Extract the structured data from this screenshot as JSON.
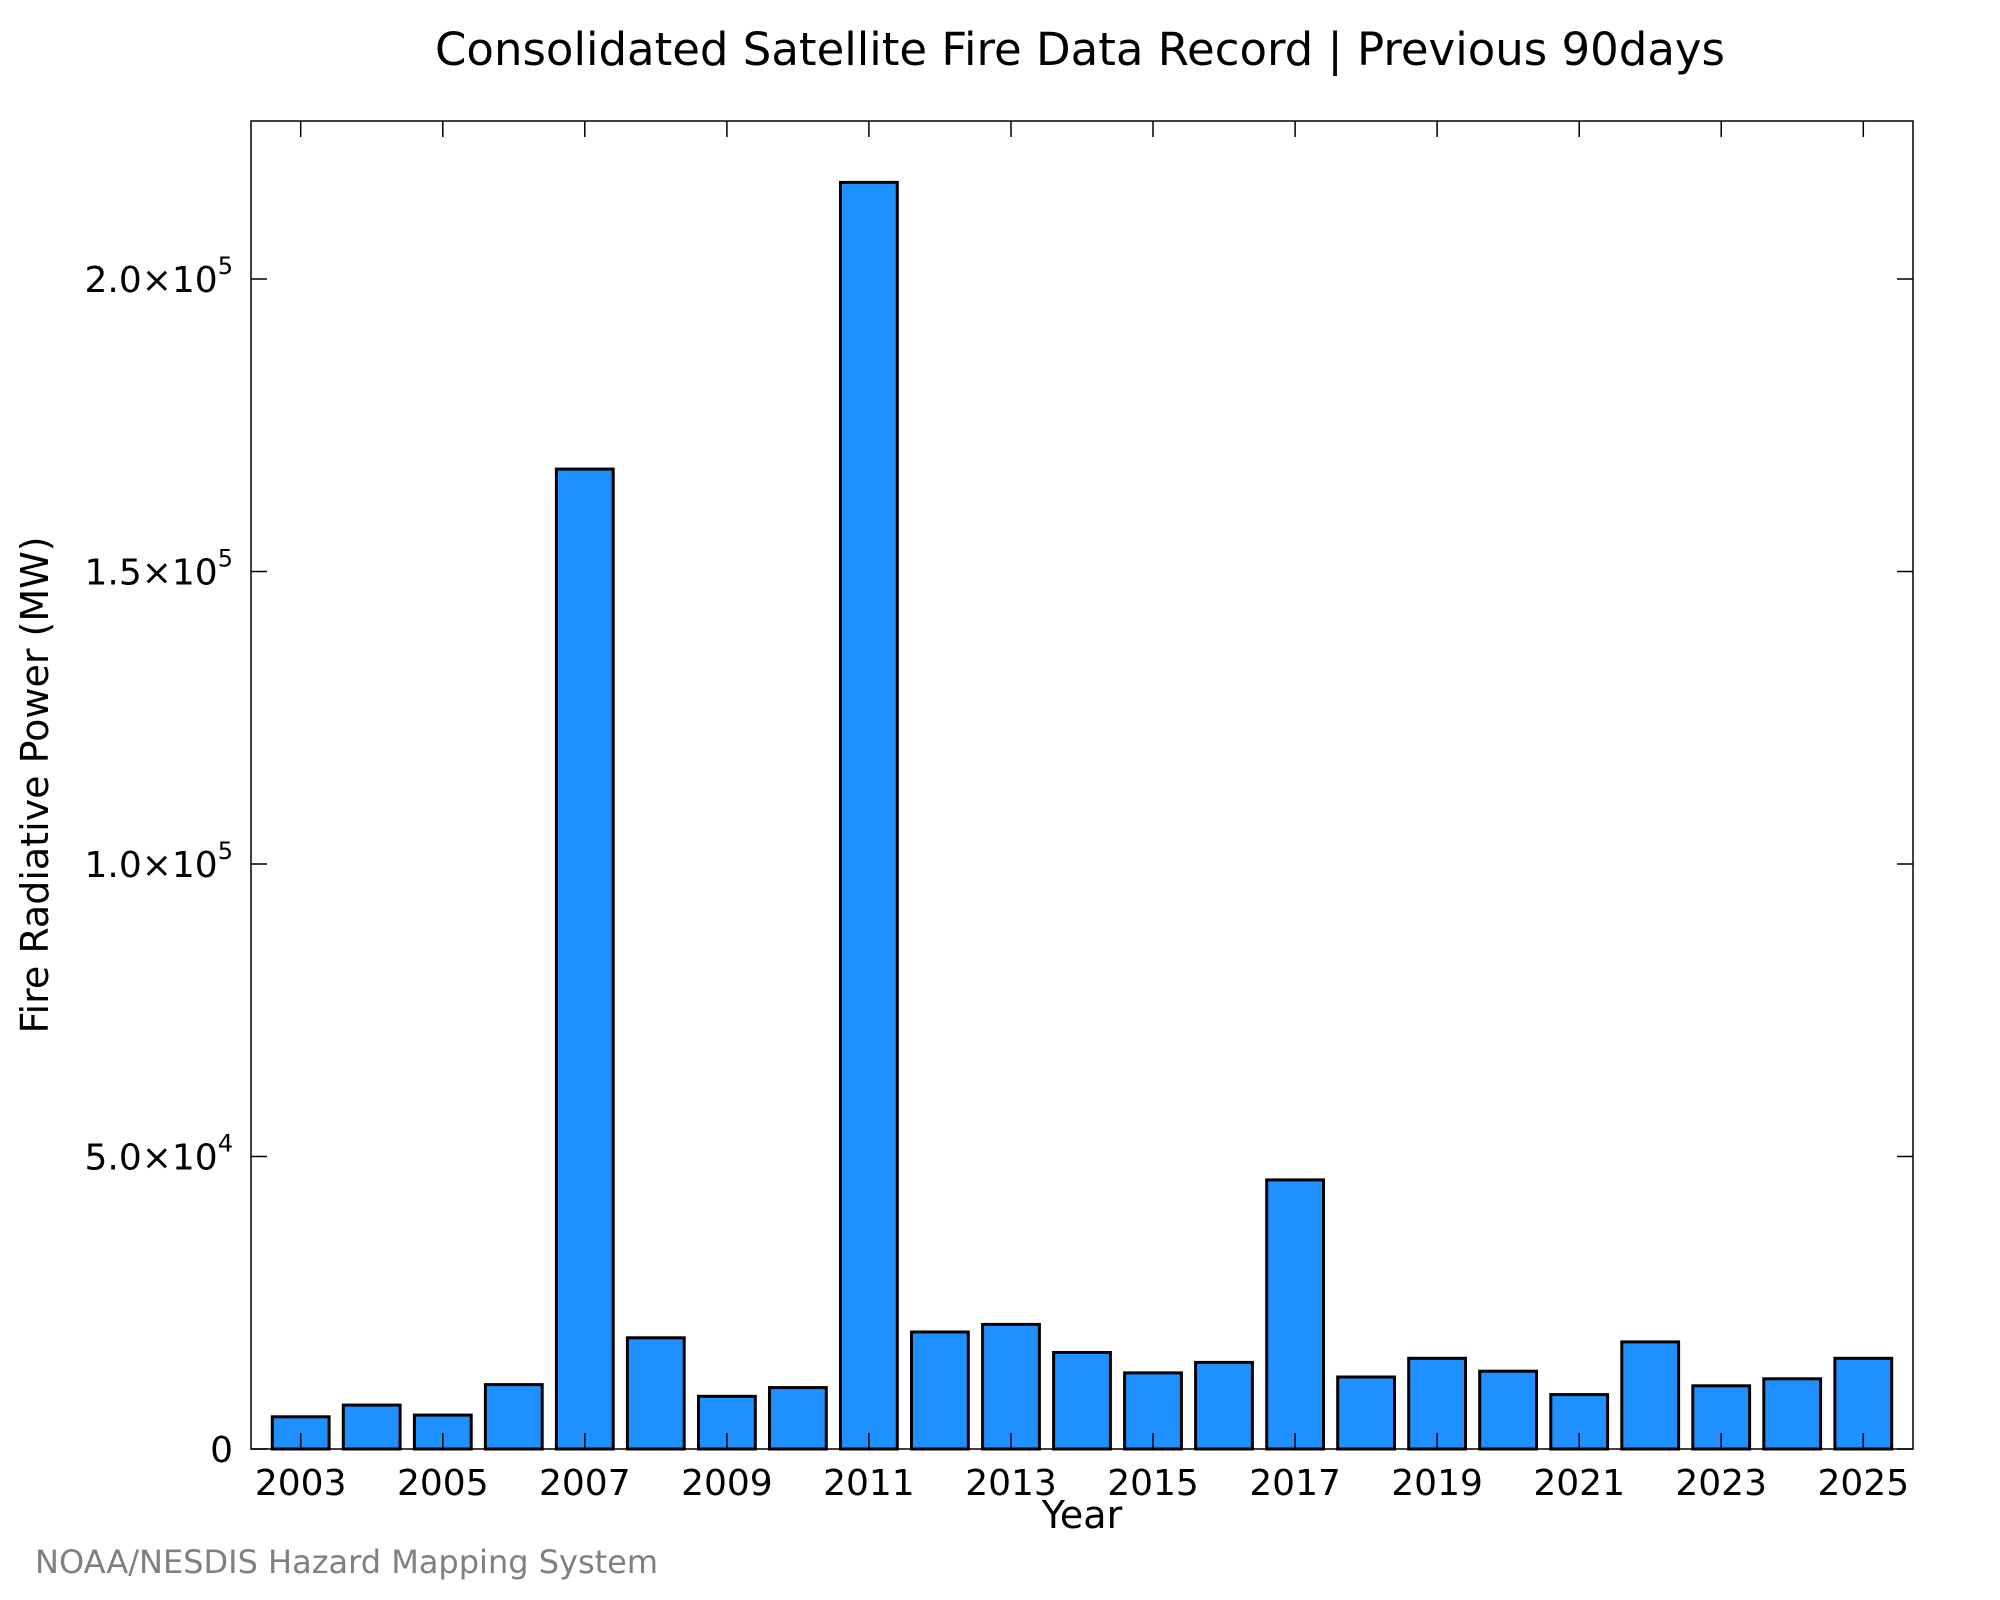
{
  "chart_data": {
    "type": "bar",
    "title": "Consolidated Satellite Fire Data Record | Previous 90days",
    "xlabel": "Year",
    "ylabel": "Fire Radiative Power (MW)",
    "categories": [
      "2003",
      "2004",
      "2005",
      "2006",
      "2007",
      "2008",
      "2009",
      "2010",
      "2011",
      "2012",
      "2013",
      "2014",
      "2015",
      "2016",
      "2017",
      "2018",
      "2019",
      "2020",
      "2021",
      "2022",
      "2023",
      "2024",
      "2025"
    ],
    "values": [
      5500,
      7500,
      5800,
      11000,
      167500,
      19000,
      9000,
      10500,
      216500,
      20000,
      21300,
      16500,
      13000,
      14800,
      46000,
      12300,
      15500,
      13300,
      9300,
      18300,
      10800,
      12000,
      15500
    ],
    "ylim": [
      0,
      227000
    ],
    "x_tick_labels": [
      "2003",
      "2005",
      "2007",
      "2009",
      "2011",
      "2013",
      "2015",
      "2017",
      "2019",
      "2021",
      "2023",
      "2025"
    ],
    "y_ticks": [
      {
        "value": 0,
        "mantissa": "0",
        "exp": ""
      },
      {
        "value": 50000,
        "mantissa": "5.0×10",
        "exp": "4"
      },
      {
        "value": 100000,
        "mantissa": "1.0×10",
        "exp": "5"
      },
      {
        "value": 150000,
        "mantissa": "1.5×10",
        "exp": "5"
      },
      {
        "value": 200000,
        "mantissa": "2.0×10",
        "exp": "5"
      }
    ],
    "bar_color": "#1E90FF",
    "bar_edge_color": "#000000",
    "grid": false,
    "legend": "none"
  },
  "credit": "NOAA/NESDIS Hazard Mapping System"
}
